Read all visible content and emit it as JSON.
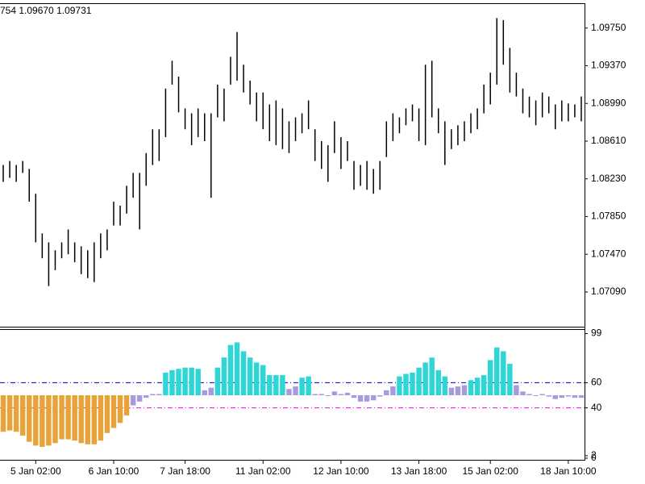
{
  "chart_data": [
    {
      "type": "ohlc",
      "title": "754 1.09670 1.09731",
      "color": "#000000",
      "high": [
        1.0837,
        1.0841,
        1.0837,
        1.0841,
        1.0833,
        1.0808,
        1.0768,
        1.0759,
        1.0751,
        1.0759,
        1.0772,
        1.0759,
        1.0755,
        1.0751,
        1.0759,
        1.0768,
        1.0772,
        1.08,
        1.0796,
        1.0816,
        1.0829,
        1.0829,
        1.0849,
        1.0873,
        1.0873,
        1.0914,
        1.0942,
        1.0926,
        1.0894,
        1.0889,
        1.0894,
        1.0889,
        1.0889,
        1.0918,
        1.0914,
        1.0946,
        1.0971,
        1.0938,
        1.0922,
        1.091,
        1.091,
        1.0898,
        1.0902,
        1.0894,
        1.0881,
        1.0885,
        1.0889,
        1.0902,
        1.0873,
        1.0861,
        1.0857,
        1.0881,
        1.0865,
        1.0861,
        1.0841,
        1.0837,
        1.0841,
        1.0833,
        1.0841,
        1.0881,
        1.0889,
        1.0885,
        1.0894,
        1.0898,
        1.0894,
        1.0938,
        1.0942,
        1.0894,
        1.0881,
        1.0873,
        1.0877,
        1.0881,
        1.0889,
        1.0894,
        1.0918,
        1.093,
        1.0985,
        1.0983,
        1.0955,
        1.093,
        1.0914,
        1.0906,
        1.0902,
        1.091,
        1.0906,
        1.0898,
        1.0902,
        1.0899,
        1.0898,
        1.0906
      ],
      "low": [
        1.082,
        1.0824,
        1.082,
        1.0829,
        1.08,
        1.0759,
        1.0743,
        1.0715,
        1.0731,
        1.0743,
        1.0747,
        1.0739,
        1.0727,
        1.0723,
        1.0719,
        1.0743,
        1.0751,
        1.0776,
        1.0776,
        1.0788,
        1.0804,
        1.0772,
        1.0816,
        1.0837,
        1.0841,
        1.0865,
        1.0918,
        1.089,
        1.0873,
        1.0857,
        1.0865,
        1.0861,
        1.0804,
        1.0885,
        1.0881,
        1.0918,
        1.0922,
        1.091,
        1.0898,
        1.0881,
        1.0873,
        1.0861,
        1.0857,
        1.0853,
        1.0849,
        1.0861,
        1.0869,
        1.0873,
        1.0841,
        1.0833,
        1.082,
        1.0849,
        1.0833,
        1.0841,
        1.0812,
        1.0816,
        1.0812,
        1.0808,
        1.0812,
        1.0845,
        1.0861,
        1.0869,
        1.0877,
        1.0881,
        1.0861,
        1.0857,
        1.0885,
        1.0869,
        1.0837,
        1.0853,
        1.0857,
        1.0861,
        1.0869,
        1.0873,
        1.0889,
        1.0898,
        1.0918,
        1.0938,
        1.091,
        1.0906,
        1.0889,
        1.0885,
        1.0877,
        1.0885,
        1.0889,
        1.0873,
        1.0881,
        1.0881,
        1.0885,
        1.0881
      ],
      "ylim": [
        1.0674,
        1.1
      ],
      "yticks": [
        {
          "value": 1.0709,
          "label": "1.07090"
        },
        {
          "value": 1.0747,
          "label": "1.07470"
        },
        {
          "value": 1.0785,
          "label": "1.07850"
        },
        {
          "value": 1.0823,
          "label": "1.08230"
        },
        {
          "value": 1.0861,
          "label": "1.08610"
        },
        {
          "value": 1.0899,
          "label": "1.08990"
        },
        {
          "value": 1.0937,
          "label": "1.09370"
        },
        {
          "value": 1.0975,
          "label": "1.09750"
        }
      ]
    },
    {
      "type": "bar",
      "categories": [
        null,
        null,
        null,
        null,
        null,
        "5 Jan 02:00",
        null,
        null,
        null,
        null,
        null,
        null,
        null,
        null,
        null,
        null,
        null,
        "6 Jan 10:00",
        null,
        null,
        null,
        null,
        null,
        null,
        null,
        null,
        null,
        null,
        "7 Jan 18:00",
        null,
        null,
        null,
        null,
        null,
        null,
        null,
        null,
        null,
        null,
        null,
        "11 Jan 02:00",
        null,
        null,
        null,
        null,
        null,
        null,
        null,
        null,
        null,
        null,
        null,
        "12 Jan 10:00",
        null,
        null,
        null,
        null,
        null,
        null,
        null,
        null,
        null,
        null,
        null,
        "13 Jan 18:00",
        null,
        null,
        null,
        null,
        null,
        null,
        null,
        null,
        null,
        null,
        "15 Jan 02:00",
        null,
        null,
        null,
        null,
        null,
        null,
        null,
        null,
        null,
        null,
        null,
        "18 Jan 10:00",
        null,
        null
      ],
      "values": [
        21,
        22,
        21,
        18,
        13,
        10,
        9,
        10,
        12,
        15,
        15,
        14,
        12,
        11,
        11,
        14,
        20,
        24,
        28,
        34,
        42,
        45,
        48,
        51,
        51,
        68,
        70,
        71,
        72,
        72,
        71,
        54,
        56,
        72,
        80,
        90,
        92,
        85,
        80,
        76,
        74,
        66,
        66,
        66,
        55,
        57,
        64,
        65,
        51,
        51,
        50,
        53,
        51,
        52,
        48,
        45,
        45,
        46,
        49,
        54,
        57,
        65,
        67,
        68,
        72,
        76,
        80,
        70,
        65,
        56,
        57,
        58,
        62,
        64,
        66,
        78,
        88,
        85,
        75,
        58,
        53,
        51,
        50,
        51,
        49,
        47,
        48,
        49,
        48,
        48
      ],
      "baseline": 50,
      "color_above": "#2ed6d6",
      "color_below": "#e8a23a",
      "color_middle": "#a999dd",
      "levels": [
        {
          "value": 60,
          "color": "#0000cc"
        },
        {
          "value": 40,
          "color": "#ff00ff"
        }
      ],
      "ylim": [
        0,
        100
      ],
      "yticks": [
        0,
        2,
        40,
        60,
        99
      ]
    }
  ]
}
